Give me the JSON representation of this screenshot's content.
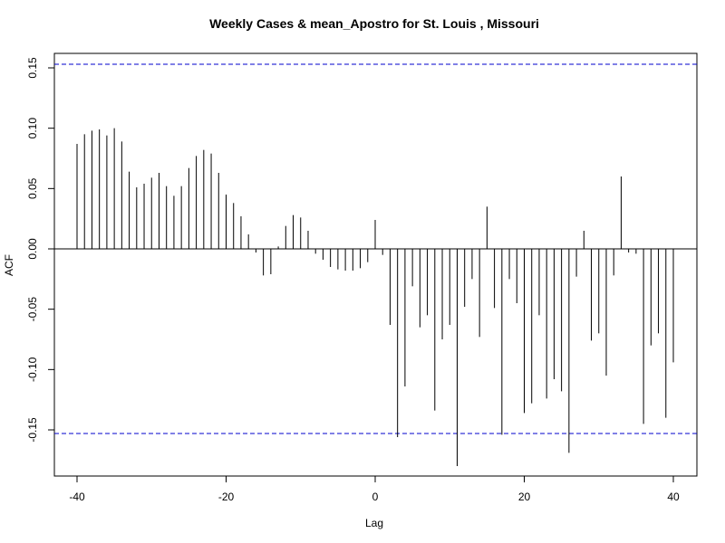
{
  "chart_data": {
    "type": "bar",
    "title": "Weekly Cases & mean_Apostro for St. Louis , Missouri",
    "xlabel": "Lag",
    "ylabel": "ACF",
    "xlim": [
      -40,
      40
    ],
    "ylim": [
      -0.18,
      0.16
    ],
    "x_ticks": [
      -40,
      -20,
      0,
      20,
      40
    ],
    "y_ticks": [
      -0.15,
      -0.1,
      -0.05,
      0.0,
      0.05,
      0.1,
      0.15
    ],
    "y_tick_labels": [
      "-0.15",
      "-0.10",
      "-0.05",
      "0.00",
      "0.05",
      "0.10",
      "0.15"
    ],
    "confidence_bounds": [
      0.153,
      -0.153
    ],
    "confidence_color": "#0000cc",
    "bar_color": "#000000",
    "grid": false,
    "x": [
      -40,
      -39,
      -38,
      -37,
      -36,
      -35,
      -34,
      -33,
      -32,
      -31,
      -30,
      -29,
      -28,
      -27,
      -26,
      -25,
      -24,
      -23,
      -22,
      -21,
      -20,
      -19,
      -18,
      -17,
      -16,
      -15,
      -14,
      -13,
      -12,
      -11,
      -10,
      -9,
      -8,
      -7,
      -6,
      -5,
      -4,
      -3,
      -2,
      -1,
      0,
      1,
      2,
      3,
      4,
      5,
      6,
      7,
      8,
      9,
      10,
      11,
      12,
      13,
      14,
      15,
      16,
      17,
      18,
      19,
      20,
      21,
      22,
      23,
      24,
      25,
      26,
      27,
      28,
      29,
      30,
      31,
      32,
      33,
      34,
      35,
      36,
      37,
      38,
      39,
      40
    ],
    "values": [
      0.087,
      0.095,
      0.098,
      0.099,
      0.094,
      0.1,
      0.089,
      0.064,
      0.051,
      0.054,
      0.059,
      0.063,
      0.052,
      0.044,
      0.052,
      0.067,
      0.077,
      0.082,
      0.079,
      0.063,
      0.045,
      0.038,
      0.027,
      0.012,
      -0.003,
      -0.022,
      -0.021,
      0.002,
      0.019,
      0.028,
      0.026,
      0.015,
      -0.004,
      -0.009,
      -0.015,
      -0.017,
      -0.018,
      -0.018,
      -0.016,
      -0.011,
      0.024,
      -0.005,
      -0.063,
      -0.156,
      -0.114,
      -0.031,
      -0.065,
      -0.055,
      -0.134,
      -0.075,
      -0.063,
      -0.18,
      -0.048,
      -0.025,
      -0.073,
      0.035,
      -0.049,
      -0.154,
      -0.025,
      -0.045,
      -0.136,
      -0.128,
      -0.055,
      -0.124,
      -0.108,
      -0.118,
      -0.169,
      -0.023,
      0.015,
      -0.076,
      -0.07,
      -0.105,
      -0.022,
      0.06,
      -0.003,
      -0.004,
      -0.145,
      -0.08,
      -0.07,
      -0.14,
      -0.094
    ]
  }
}
